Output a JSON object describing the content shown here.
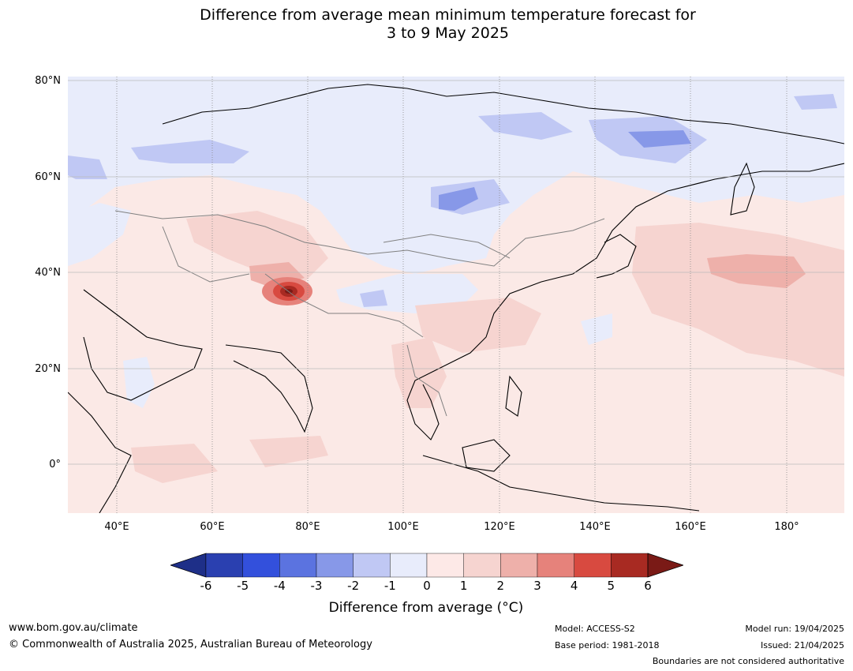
{
  "title_line1": "Difference from average mean minimum temperature forecast for",
  "title_line2": "3 to 9 May 2025",
  "lat_labels": [
    "80°N",
    "60°N",
    "40°N",
    "20°N",
    "0°"
  ],
  "lon_labels": [
    "40°E",
    "60°E",
    "80°E",
    "100°E",
    "120°E",
    "140°E",
    "160°E",
    "180°"
  ],
  "colorbar": {
    "ticks": [
      "-6",
      "-5",
      "-4",
      "-3",
      "-2",
      "-1",
      "0",
      "1",
      "2",
      "3",
      "4",
      "5",
      "6"
    ],
    "colors": [
      "#1e2f88",
      "#2a40b0",
      "#3350dc",
      "#5b73e0",
      "#8798e8",
      "#c0c8f4",
      "#e8ecfb",
      "#fde9e7",
      "#f6d4d0",
      "#eeb0aa",
      "#e6827b",
      "#d84a40",
      "#a82a22",
      "#7a1a16"
    ],
    "title": "Difference from average (°C)"
  },
  "footer": {
    "website": "www.bom.gov.au/climate",
    "copyright": "© Commonwealth of Australia 2025, Australian Bureau of Meteorology",
    "model": "Model: ACCESS-S2",
    "base_period": "Base period: 1981-2018",
    "model_run": "Model run: 19/04/2025",
    "issued": "Issued: 21/04/2025",
    "disclaimer": "Boundaries are not considered authoritative"
  }
}
